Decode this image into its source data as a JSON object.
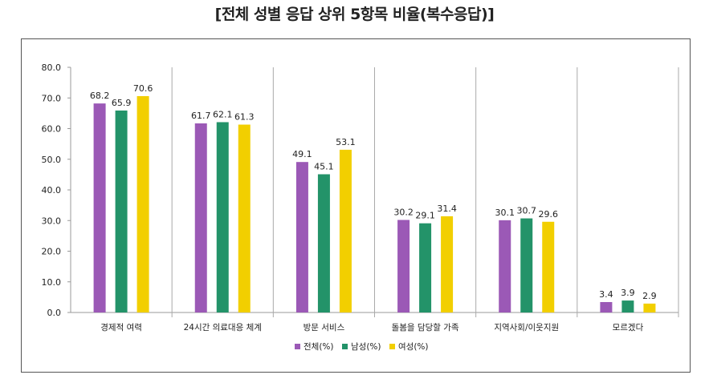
{
  "chart_data": {
    "type": "bar",
    "title": "[전체 성별 응답 상위 5항목 비율(복수응답)]",
    "categories": [
      "경제적 여력",
      "24시간 의료대응 체계",
      "방문 서비스",
      "돌봄을 담당할 가족",
      "지역사회/이웃지원",
      "모르겠다"
    ],
    "series": [
      {
        "name": "전체(%)",
        "color": "#9b59b6",
        "values": [
          68.2,
          61.7,
          49.1,
          30.2,
          30.1,
          3.4
        ]
      },
      {
        "name": "남성(%)",
        "color": "#239369",
        "values": [
          65.9,
          62.1,
          45.1,
          29.1,
          30.7,
          3.9
        ]
      },
      {
        "name": "여성(%)",
        "color": "#f2cf00",
        "values": [
          70.6,
          61.3,
          53.1,
          31.4,
          29.6,
          2.9
        ]
      }
    ],
    "ylim": [
      0,
      80
    ],
    "yticks": [
      "0.0",
      "10.0",
      "20.0",
      "30.0",
      "40.0",
      "50.0",
      "60.0",
      "70.0",
      "80.0"
    ],
    "xlabel": "",
    "ylabel": "",
    "legend": "bottom",
    "grid": false
  }
}
